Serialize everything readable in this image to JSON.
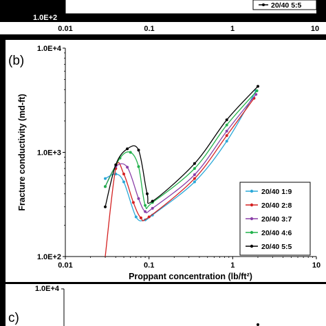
{
  "top_panel": {
    "y_tick_bottom": "1.0E+2",
    "x_ticks": [
      "0.01",
      "0.1",
      "1",
      "10"
    ],
    "legend_last": "20/40 5:5"
  },
  "panel_c": {
    "label": "c)",
    "y_tick_top": "1.0E+4"
  },
  "chart_data": {
    "type": "line",
    "panel_label": "(b)",
    "xlabel": "Proppant concentration  (lb/ft²)",
    "ylabel": "Fracture conductivity (md-ft)",
    "x_scale": "log",
    "y_scale": "log",
    "xlim": [
      0.01,
      10
    ],
    "ylim": [
      100,
      10000
    ],
    "x_ticks": [
      "0.01",
      "0.1",
      "1",
      "10"
    ],
    "y_ticks": [
      "1.0E+2",
      "1.0E+3",
      "1.0E+4"
    ],
    "legend_position": "lower-right",
    "series": [
      {
        "name": "20/40 1:9",
        "color": "#2aa8d8",
        "points": [
          [
            0.03,
            560
          ],
          [
            0.04,
            620
          ],
          [
            0.05,
            520
          ],
          [
            0.07,
            240
          ],
          [
            0.09,
            225
          ],
          [
            0.11,
            250
          ],
          [
            0.35,
            520
          ],
          [
            0.85,
            1280
          ],
          [
            1.9,
            3900
          ]
        ]
      },
      {
        "name": "20/40 2:8",
        "color": "#d42020",
        "points": [
          [
            0.03,
            100
          ],
          [
            0.04,
            700
          ],
          [
            0.05,
            620
          ],
          [
            0.065,
            330
          ],
          [
            0.08,
            235
          ],
          [
            0.1,
            240
          ],
          [
            0.35,
            560
          ],
          [
            0.85,
            1450
          ],
          [
            1.8,
            3300
          ]
        ]
      },
      {
        "name": "20/40 3:7",
        "color": "#8a3fa8",
        "points": [
          [
            0.03,
            470
          ],
          [
            0.04,
            730
          ],
          [
            0.055,
            720
          ],
          [
            0.075,
            360
          ],
          [
            0.09,
            270
          ],
          [
            0.11,
            290
          ],
          [
            0.35,
            610
          ],
          [
            0.85,
            1600
          ],
          [
            1.9,
            3600
          ]
        ]
      },
      {
        "name": "20/40 4:6",
        "color": "#22b24c",
        "points": [
          [
            0.03,
            470
          ],
          [
            0.045,
            880
          ],
          [
            0.06,
            1000
          ],
          [
            0.075,
            730
          ],
          [
            0.09,
            310
          ],
          [
            0.11,
            330
          ],
          [
            0.35,
            700
          ],
          [
            0.85,
            1830
          ],
          [
            1.95,
            3900
          ]
        ]
      },
      {
        "name": "20/40 5:5",
        "color": "#000000",
        "points": [
          [
            0.03,
            300
          ],
          [
            0.04,
            760
          ],
          [
            0.055,
            1080
          ],
          [
            0.075,
            1050
          ],
          [
            0.095,
            400
          ],
          [
            0.11,
            340
          ],
          [
            0.35,
            780
          ],
          [
            0.85,
            2050
          ],
          [
            2.0,
            4300
          ]
        ]
      }
    ]
  }
}
